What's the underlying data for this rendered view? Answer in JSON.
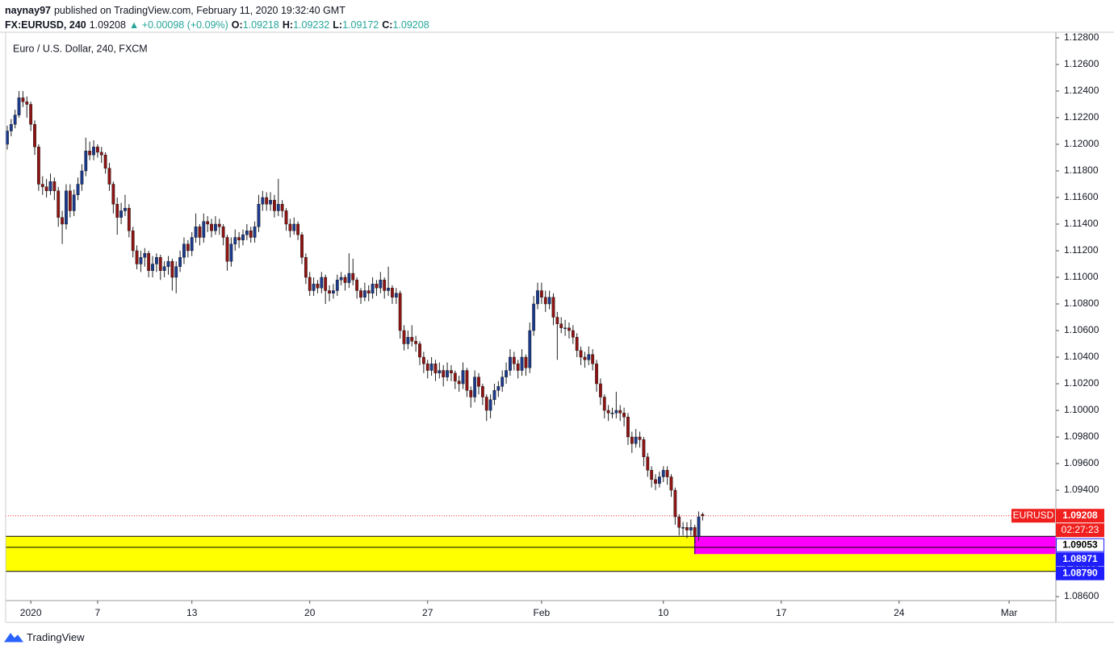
{
  "header": {
    "publisher": "naynay97",
    "published": "published on TradingView.com, February 11, 2020 19:32:40 GMT",
    "symbol": "FX:EURUSD, 240",
    "price": "1.09208",
    "change": "▲ +0.00098 (+0.09%)",
    "ohlc": [
      {
        "label": "O:",
        "value": "1.09218"
      },
      {
        "label": "H:",
        "value": "1.09232"
      },
      {
        "label": "L:",
        "value": "1.09172"
      },
      {
        "label": "C:",
        "value": "1.09208"
      }
    ]
  },
  "chart_data": {
    "type": "candlestick",
    "title": "Euro / U.S. Dollar, 240, FXCM",
    "up_color": "#1c3a8c",
    "down_color": "#8e1414",
    "wick_color": "#222222",
    "grid": false,
    "ohlc": [
      [
        1.12,
        1.1214,
        1.1196,
        1.121
      ],
      [
        1.121,
        1.1219,
        1.1206,
        1.1215
      ],
      [
        1.1215,
        1.1226,
        1.1212,
        1.1222
      ],
      [
        1.1222,
        1.124,
        1.122,
        1.1235
      ],
      [
        1.1235,
        1.124,
        1.1228,
        1.1232
      ],
      [
        1.1232,
        1.1236,
        1.122,
        1.123
      ],
      [
        1.123,
        1.1232,
        1.121,
        1.1215
      ],
      [
        1.1215,
        1.1218,
        1.1192,
        1.1198
      ],
      [
        1.1198,
        1.12,
        1.1165,
        1.117
      ],
      [
        1.117,
        1.1176,
        1.1162,
        1.1168
      ],
      [
        1.1168,
        1.1174,
        1.116,
        1.1165
      ],
      [
        1.1165,
        1.1178,
        1.1162,
        1.1172
      ],
      [
        1.1172,
        1.1175,
        1.1158,
        1.1165
      ],
      [
        1.1165,
        1.1168,
        1.1138,
        1.1145
      ],
      [
        1.1145,
        1.115,
        1.1125,
        1.114
      ],
      [
        1.114,
        1.117,
        1.1136,
        1.1165
      ],
      [
        1.1165,
        1.117,
        1.1145,
        1.115
      ],
      [
        1.115,
        1.1166,
        1.1146,
        1.1162
      ],
      [
        1.1162,
        1.1175,
        1.1158,
        1.117
      ],
      [
        1.117,
        1.1185,
        1.1165,
        1.118
      ],
      [
        1.118,
        1.1205,
        1.1176,
        1.1195
      ],
      [
        1.1195,
        1.1202,
        1.1188,
        1.1192
      ],
      [
        1.1192,
        1.1203,
        1.1188,
        1.1198
      ],
      [
        1.1198,
        1.12,
        1.119,
        1.1194
      ],
      [
        1.1194,
        1.1198,
        1.1186,
        1.1192
      ],
      [
        1.1192,
        1.1194,
        1.1178,
        1.1182
      ],
      [
        1.1182,
        1.1186,
        1.1165,
        1.117
      ],
      [
        1.117,
        1.1172,
        1.1148,
        1.1155
      ],
      [
        1.1155,
        1.116,
        1.1132,
        1.1145
      ],
      [
        1.1145,
        1.1156,
        1.114,
        1.115
      ],
      [
        1.115,
        1.1162,
        1.1146,
        1.1152
      ],
      [
        1.1152,
        1.1155,
        1.113,
        1.1135
      ],
      [
        1.1135,
        1.1138,
        1.1115,
        1.112
      ],
      [
        1.112,
        1.1124,
        1.1106,
        1.111
      ],
      [
        1.111,
        1.112,
        1.1104,
        1.1115
      ],
      [
        1.1115,
        1.1122,
        1.1108,
        1.1118
      ],
      [
        1.1118,
        1.112,
        1.11,
        1.1105
      ],
      [
        1.1105,
        1.1116,
        1.11,
        1.111
      ],
      [
        1.111,
        1.1118,
        1.1104,
        1.1115
      ],
      [
        1.1115,
        1.1117,
        1.1098,
        1.1105
      ],
      [
        1.1105,
        1.1112,
        1.11,
        1.1108
      ],
      [
        1.1108,
        1.1116,
        1.1102,
        1.1112
      ],
      [
        1.1112,
        1.1114,
        1.109,
        1.11
      ],
      [
        1.11,
        1.1112,
        1.1088,
        1.1108
      ],
      [
        1.1108,
        1.112,
        1.1104,
        1.1115
      ],
      [
        1.1115,
        1.113,
        1.111,
        1.1125
      ],
      [
        1.1125,
        1.1128,
        1.1115,
        1.112
      ],
      [
        1.112,
        1.1134,
        1.1116,
        1.113
      ],
      [
        1.113,
        1.1148,
        1.1126,
        1.1138
      ],
      [
        1.1138,
        1.114,
        1.1124,
        1.113
      ],
      [
        1.113,
        1.1148,
        1.1126,
        1.1142
      ],
      [
        1.1142,
        1.1146,
        1.1134,
        1.114
      ],
      [
        1.114,
        1.1144,
        1.113,
        1.1135
      ],
      [
        1.1135,
        1.1146,
        1.1132,
        1.114
      ],
      [
        1.114,
        1.1144,
        1.1132,
        1.1138
      ],
      [
        1.1138,
        1.114,
        1.1124,
        1.113
      ],
      [
        1.113,
        1.1132,
        1.1105,
        1.1112
      ],
      [
        1.1112,
        1.113,
        1.1108,
        1.1125
      ],
      [
        1.1125,
        1.1136,
        1.112,
        1.113
      ],
      [
        1.113,
        1.1134,
        1.1122,
        1.1128
      ],
      [
        1.1128,
        1.1136,
        1.1124,
        1.1132
      ],
      [
        1.1132,
        1.114,
        1.1128,
        1.1135
      ],
      [
        1.1135,
        1.1138,
        1.1126,
        1.113
      ],
      [
        1.113,
        1.1142,
        1.1126,
        1.1138
      ],
      [
        1.1138,
        1.1162,
        1.1134,
        1.1155
      ],
      [
        1.1155,
        1.1165,
        1.115,
        1.116
      ],
      [
        1.116,
        1.1164,
        1.115,
        1.1155
      ],
      [
        1.1155,
        1.1164,
        1.115,
        1.1158
      ],
      [
        1.1158,
        1.1162,
        1.1145,
        1.115
      ],
      [
        1.115,
        1.1174,
        1.1146,
        1.1155
      ],
      [
        1.1155,
        1.1158,
        1.1145,
        1.115
      ],
      [
        1.115,
        1.1152,
        1.1135,
        1.114
      ],
      [
        1.114,
        1.1144,
        1.113,
        1.1135
      ],
      [
        1.1135,
        1.1145,
        1.1132,
        1.114
      ],
      [
        1.114,
        1.1142,
        1.1128,
        1.1132
      ],
      [
        1.1132,
        1.1134,
        1.111,
        1.1115
      ],
      [
        1.1115,
        1.1118,
        1.1095,
        1.11
      ],
      [
        1.11,
        1.1104,
        1.1086,
        1.109
      ],
      [
        1.109,
        1.11,
        1.1086,
        1.1095
      ],
      [
        1.1095,
        1.1098,
        1.1088,
        1.1092
      ],
      [
        1.1092,
        1.1104,
        1.1088,
        1.11
      ],
      [
        1.11,
        1.1102,
        1.108,
        1.109
      ],
      [
        1.109,
        1.1094,
        1.1082,
        1.1088
      ],
      [
        1.1088,
        1.1095,
        1.1084,
        1.109
      ],
      [
        1.109,
        1.1102,
        1.1086,
        1.1098
      ],
      [
        1.1098,
        1.1104,
        1.1094,
        1.11
      ],
      [
        1.11,
        1.1102,
        1.109,
        1.1096
      ],
      [
        1.1096,
        1.1118,
        1.1092,
        1.1103
      ],
      [
        1.1103,
        1.1114,
        1.1094,
        1.1098
      ],
      [
        1.1098,
        1.11,
        1.1084,
        1.109
      ],
      [
        1.109,
        1.1092,
        1.108,
        1.1085
      ],
      [
        1.1085,
        1.1096,
        1.1082,
        1.109
      ],
      [
        1.109,
        1.1094,
        1.1082,
        1.1088
      ],
      [
        1.1088,
        1.11,
        1.1084,
        1.1095
      ],
      [
        1.1095,
        1.1098,
        1.1086,
        1.1092
      ],
      [
        1.1092,
        1.1104,
        1.1088,
        1.1098
      ],
      [
        1.1098,
        1.11,
        1.1084,
        1.109
      ],
      [
        1.109,
        1.1108,
        1.1086,
        1.1092
      ],
      [
        1.1092,
        1.1094,
        1.108,
        1.1085
      ],
      [
        1.1085,
        1.1092,
        1.108,
        1.1088
      ],
      [
        1.1088,
        1.109,
        1.1054,
        1.106
      ],
      [
        1.106,
        1.1064,
        1.1045,
        1.105
      ],
      [
        1.105,
        1.106,
        1.1046,
        1.1055
      ],
      [
        1.1055,
        1.1064,
        1.1048,
        1.1052
      ],
      [
        1.1052,
        1.1056,
        1.1044,
        1.105
      ],
      [
        1.105,
        1.1052,
        1.1034,
        1.104
      ],
      [
        1.104,
        1.1044,
        1.1028,
        1.1035
      ],
      [
        1.1035,
        1.1038,
        1.1024,
        1.103
      ],
      [
        1.103,
        1.104,
        1.1026,
        1.1035
      ],
      [
        1.1035,
        1.1038,
        1.1022,
        1.1028
      ],
      [
        1.1028,
        1.1036,
        1.1024,
        1.103
      ],
      [
        1.103,
        1.1034,
        1.1018,
        1.1025
      ],
      [
        1.1025,
        1.1036,
        1.1022,
        1.103
      ],
      [
        1.103,
        1.1034,
        1.1022,
        1.1028
      ],
      [
        1.1028,
        1.103,
        1.1016,
        1.1022
      ],
      [
        1.1022,
        1.1026,
        1.1014,
        1.102
      ],
      [
        1.102,
        1.1036,
        1.1016,
        1.103
      ],
      [
        1.103,
        1.1032,
        1.101,
        1.1015
      ],
      [
        1.1015,
        1.1018,
        1.1002,
        1.101
      ],
      [
        1.101,
        1.103,
        1.1006,
        1.1025
      ],
      [
        1.1025,
        1.1028,
        1.1012,
        1.1018
      ],
      [
        1.1018,
        1.102,
        1.1004,
        1.101
      ],
      [
        1.101,
        1.1012,
        1.0992,
        1.1
      ],
      [
        1.1,
        1.1012,
        1.0994,
        1.1008
      ],
      [
        1.1008,
        1.102,
        1.1004,
        1.1015
      ],
      [
        1.1015,
        1.1022,
        1.101,
        1.1018
      ],
      [
        1.1018,
        1.103,
        1.1014,
        1.1025
      ],
      [
        1.1025,
        1.1036,
        1.102,
        1.103
      ],
      [
        1.103,
        1.1046,
        1.1026,
        1.104
      ],
      [
        1.104,
        1.1044,
        1.103,
        1.1035
      ],
      [
        1.1035,
        1.1038,
        1.1024,
        1.103
      ],
      [
        1.103,
        1.1046,
        1.1026,
        1.104
      ],
      [
        1.104,
        1.1042,
        1.1026,
        1.1032
      ],
      [
        1.1032,
        1.1066,
        1.1028,
        1.106
      ],
      [
        1.106,
        1.1086,
        1.1056,
        1.108
      ],
      [
        1.108,
        1.1096,
        1.1076,
        1.109
      ],
      [
        1.109,
        1.1096,
        1.108,
        1.1085
      ],
      [
        1.1085,
        1.109,
        1.1074,
        1.108
      ],
      [
        1.108,
        1.109,
        1.1076,
        1.1085
      ],
      [
        1.1085,
        1.1088,
        1.1064,
        1.107
      ],
      [
        1.107,
        1.1074,
        1.1038,
        1.1065
      ],
      [
        1.1065,
        1.107,
        1.1058,
        1.1062
      ],
      [
        1.1062,
        1.1068,
        1.1056,
        1.1062
      ],
      [
        1.1062,
        1.1066,
        1.1054,
        1.106
      ],
      [
        1.106,
        1.1064,
        1.105,
        1.1055
      ],
      [
        1.1055,
        1.1058,
        1.104,
        1.1045
      ],
      [
        1.1045,
        1.1048,
        1.1034,
        1.104
      ],
      [
        1.104,
        1.1044,
        1.1032,
        1.1038
      ],
      [
        1.1038,
        1.1048,
        1.1034,
        1.1042
      ],
      [
        1.1042,
        1.1046,
        1.103,
        1.1035
      ],
      [
        1.1035,
        1.1038,
        1.1014,
        1.102
      ],
      [
        1.102,
        1.1024,
        1.1004,
        1.101
      ],
      [
        1.101,
        1.1012,
        1.0994,
        1.1
      ],
      [
        1.1,
        1.1004,
        1.0992,
        1.0998
      ],
      [
        1.0998,
        1.1002,
        1.0994,
        1.0998
      ],
      [
        1.0998,
        1.1014,
        1.0994,
        1.1
      ],
      [
        1.1,
        1.1004,
        1.0992,
        1.0998
      ],
      [
        1.0998,
        1.1002,
        1.0988,
        1.0995
      ],
      [
        1.0995,
        1.0998,
        1.0974,
        1.098
      ],
      [
        1.098,
        1.0984,
        1.0968,
        1.0975
      ],
      [
        1.0975,
        1.0986,
        1.0972,
        1.098
      ],
      [
        1.098,
        1.0984,
        1.0972,
        1.0978
      ],
      [
        1.0978,
        1.098,
        1.0958,
        1.0965
      ],
      [
        1.0965,
        1.0968,
        1.095,
        1.0955
      ],
      [
        1.0955,
        1.0958,
        1.0942,
        1.0948
      ],
      [
        1.0948,
        1.0952,
        1.094,
        1.0945
      ],
      [
        1.0945,
        1.0954,
        1.0942,
        1.095
      ],
      [
        1.095,
        1.0958,
        1.0946,
        1.0955
      ],
      [
        1.0955,
        1.0958,
        1.0944,
        1.095
      ],
      [
        1.095,
        1.0952,
        1.0935,
        1.094
      ],
      [
        1.094,
        1.0942,
        1.0914,
        1.092
      ],
      [
        1.092,
        1.0922,
        1.0906,
        1.0912
      ],
      [
        1.0912,
        1.0916,
        1.0906,
        1.0912
      ],
      [
        1.0912,
        1.0916,
        1.0904,
        1.091
      ],
      [
        1.091,
        1.0918,
        1.0906,
        1.0912
      ],
      [
        1.0912,
        1.0914,
        1.09,
        1.0905
      ],
      [
        1.0905,
        1.0924,
        1.0902,
        1.092
      ],
      [
        1.09218,
        1.09232,
        1.09172,
        1.09208
      ]
    ],
    "xlim": [
      -0.4,
      266.9
    ],
    "xticks": [
      {
        "value": 6,
        "label": "2020"
      },
      {
        "value": 23,
        "label": "7"
      },
      {
        "value": 47,
        "label": "13"
      },
      {
        "value": 77,
        "label": "20"
      },
      {
        "value": 107,
        "label": "27"
      },
      {
        "value": 136,
        "label": "Feb"
      },
      {
        "value": 167,
        "label": "10"
      },
      {
        "value": 197,
        "label": "17"
      },
      {
        "value": 227,
        "label": "24"
      },
      {
        "value": 255,
        "label": "Mar"
      }
    ],
    "ylim": [
      1.0857,
      1.1283
    ],
    "yticks": [
      {
        "value": 1.128,
        "label": "1.12800"
      },
      {
        "value": 1.126,
        "label": "1.12600"
      },
      {
        "value": 1.124,
        "label": "1.12400"
      },
      {
        "value": 1.122,
        "label": "1.12200"
      },
      {
        "value": 1.12,
        "label": "1.12000"
      },
      {
        "value": 1.118,
        "label": "1.11800"
      },
      {
        "value": 1.116,
        "label": "1.11600"
      },
      {
        "value": 1.114,
        "label": "1.11400"
      },
      {
        "value": 1.112,
        "label": "1.11200"
      },
      {
        "value": 1.11,
        "label": "1.11000"
      },
      {
        "value": 1.108,
        "label": "1.10800"
      },
      {
        "value": 1.106,
        "label": "1.10600"
      },
      {
        "value": 1.104,
        "label": "1.10400"
      },
      {
        "value": 1.102,
        "label": "1.10200"
      },
      {
        "value": 1.1,
        "label": "1.10000"
      },
      {
        "value": 1.098,
        "label": "1.09800"
      },
      {
        "value": 1.096,
        "label": "1.09600"
      },
      {
        "value": 1.094,
        "label": "1.09400"
      },
      {
        "value": 1.092,
        "label": "1.09200"
      },
      {
        "value": 1.09,
        "label": "1.09000"
      },
      {
        "value": 1.088,
        "label": "1.08800"
      },
      {
        "value": 1.086,
        "label": "1.08600"
      }
    ],
    "last_price": {
      "value": 1.09208,
      "symbol": "EURUSD",
      "countdown": "02:27:23",
      "color": "#f0201e"
    },
    "zones": [
      {
        "top": 1.09053,
        "bottom": 1.0879,
        "color": "#ffff00"
      },
      {
        "top": 1.09053,
        "bottom": 1.0892,
        "start": 175,
        "color": "#ff00ff"
      }
    ],
    "levels": [
      {
        "value": 1.09053,
        "label": "1.09053",
        "bg": "#ffffff",
        "fg": "#000000"
      },
      {
        "value": 1.08971,
        "label": "1.08971",
        "bg": "#1e1eff",
        "fg": "#ffffff"
      },
      {
        "value": 1.0879,
        "label": "1.08790",
        "bg": "#1e1eff",
        "fg": "#ffffff"
      }
    ]
  },
  "footer": {
    "brand": "TradingView"
  }
}
